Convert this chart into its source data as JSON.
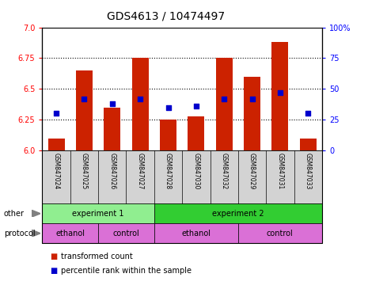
{
  "title": "GDS4613 / 10474497",
  "samples": [
    "GSM847024",
    "GSM847025",
    "GSM847026",
    "GSM847027",
    "GSM847028",
    "GSM847030",
    "GSM847032",
    "GSM847029",
    "GSM847031",
    "GSM847033"
  ],
  "bar_values": [
    6.1,
    6.65,
    6.35,
    6.75,
    6.25,
    6.28,
    6.75,
    6.6,
    6.88,
    6.1
  ],
  "dot_pct": [
    30,
    42,
    38,
    42,
    35,
    36,
    42,
    42,
    47,
    30
  ],
  "ylim_left": [
    6.0,
    7.0
  ],
  "ylim_right": [
    0,
    100
  ],
  "yticks_left": [
    6.0,
    6.25,
    6.5,
    6.75,
    7.0
  ],
  "yticks_right": [
    0,
    25,
    50,
    75,
    100
  ],
  "bar_color": "#cc2200",
  "dot_color": "#0000cc",
  "bar_bottom": 6.0,
  "experiment1_color": "#90ee90",
  "experiment2_color": "#32cd32",
  "ethanol_color": "#da70d6",
  "control_color": "#da70d6",
  "legend_bar_label": "transformed count",
  "legend_dot_label": "percentile rank within the sample",
  "title_fontsize": 10,
  "n_exp1": 4,
  "n_eth1": 2,
  "n_eth2": 3
}
